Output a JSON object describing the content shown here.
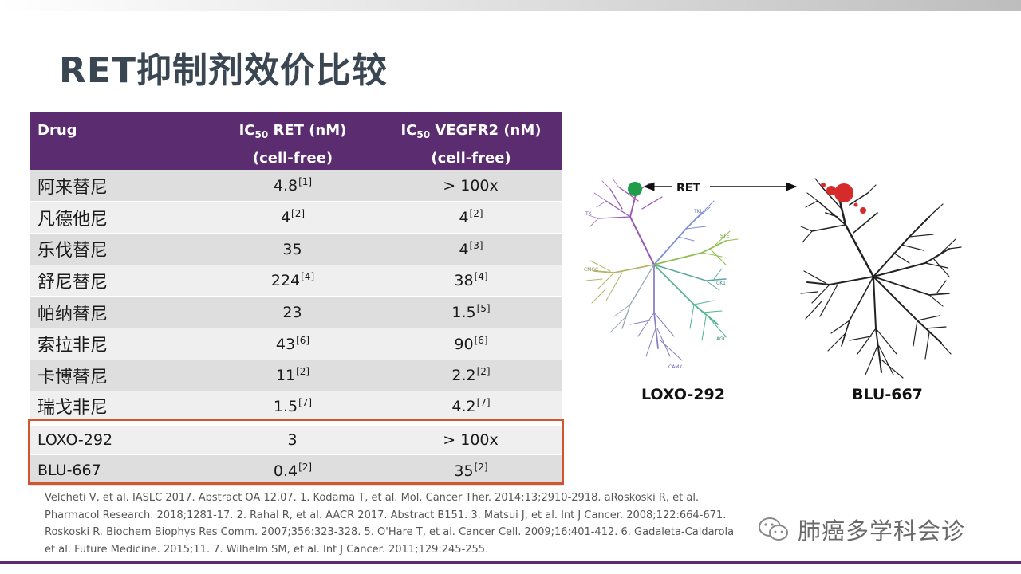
{
  "slide": {
    "title": "RET抑制剂效价比较"
  },
  "table": {
    "headers": {
      "drug": "Drug",
      "ic50_prefix_1": "IC",
      "ic50_sub_1": "50",
      "ic50_ret_rest": " RET (nM)",
      "ic50_ret_line2": "(cell-free)",
      "ic50_prefix_2": "IC",
      "ic50_sub_2": "50",
      "ic50_vegfr2_rest": " VEGFR2 (nM)",
      "ic50_vegfr2_line2": "(cell-free)"
    },
    "rows": [
      {
        "drug": "阿来替尼",
        "ret": "4.8",
        "ret_ref": "[1]",
        "vegfr2": "> 100x",
        "vegfr2_ref": ""
      },
      {
        "drug": "凡德他尼",
        "ret": "4",
        "ret_ref": "[2]",
        "vegfr2": "4",
        "vegfr2_ref": "[2]"
      },
      {
        "drug": "乐伐替尼",
        "ret": "35",
        "ret_ref": "",
        "vegfr2": "4",
        "vegfr2_ref": "[3]"
      },
      {
        "drug": "舒尼替尼",
        "ret": "224",
        "ret_ref": "[4]",
        "vegfr2": "38",
        "vegfr2_ref": "[4]"
      },
      {
        "drug": "帕纳替尼",
        "ret": "23",
        "ret_ref": "",
        "vegfr2": "1.5",
        "vegfr2_ref": "[5]"
      },
      {
        "drug": "索拉非尼",
        "ret": "43",
        "ret_ref": "[6]",
        "vegfr2": "90",
        "vegfr2_ref": "[6]"
      },
      {
        "drug": "卡博替尼",
        "ret": "11",
        "ret_ref": "[2]",
        "vegfr2": "2.2",
        "vegfr2_ref": "[2]"
      },
      {
        "drug": "瑞戈非尼",
        "ret": "1.5",
        "ret_ref": "[7]",
        "vegfr2": "4.2",
        "vegfr2_ref": "[7]"
      },
      {
        "drug": "LOXO-292",
        "ret": "3",
        "ret_ref": "",
        "vegfr2": "> 100x",
        "vegfr2_ref": ""
      },
      {
        "drug": "BLU-667",
        "ret": "0.4",
        "ret_ref": "[2]",
        "vegfr2": "35",
        "vegfr2_ref": "[2]"
      }
    ]
  },
  "figure": {
    "ret_label": "RET",
    "family_labels": {
      "tk": "TK",
      "tkl": "TKL",
      "ste": "STE",
      "ck1": "CK1",
      "cmgc": "CMGC",
      "agc": "AGC",
      "camk": "CAMK"
    },
    "caption_left": "LOXO-292",
    "caption_right": "BLU-667",
    "colors": {
      "tk": "#9b59b6",
      "tkl": "#7f8fd6",
      "ste": "#8fbf4a",
      "ck1": "#5aa7a0",
      "cmgc": "#b5b56a",
      "agc": "#4fb48e",
      "camk": "#8c7fc4",
      "hit_green": "#1f9d4a",
      "hit_red": "#d62b2b"
    }
  },
  "references": [
    "Velcheti V, et al. IASLC 2017. Abstract OA 12.07. 1. Kodama T, et al. Mol. Cancer Ther. 2014:13;2910-2918. aRoskoski R, et al.",
    "Pharmacol Research. 2018;1281-17. 2. Rahal R, et al. AACR 2017. Abstract B151. 3. Matsui J, et al. Int J Cancer. 2008;122:664-671.",
    "Roskoski R. Biochem Biophys Res Comm. 2007;356:323-328. 5. O'Hare T, et al. Cancer Cell. 2009;16:401-412. 6. Gadaleta-Caldarola",
    "et al. Future Medicine. 2015;11. 7. Wilhelm SM, et al. Int J Cancer. 2011;129:245-255."
  ],
  "watermark": {
    "text": "肺癌多学科会诊",
    "icon": "wechat-icon"
  },
  "theme": {
    "header_purple": "#5b2c6f",
    "highlight_orange": "#d0562c",
    "title_color": "#3a4752"
  }
}
